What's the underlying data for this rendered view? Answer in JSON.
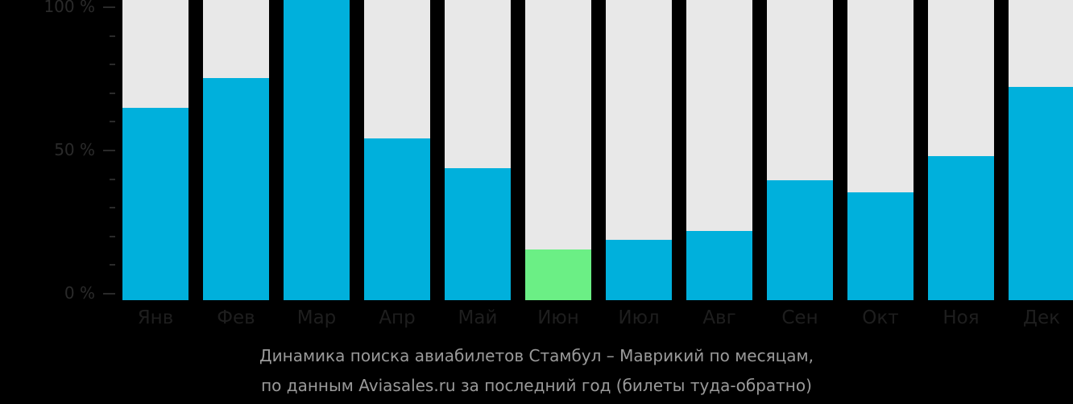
{
  "chart_data": {
    "type": "bar",
    "title": "Динамика поиска авиабилетов Стамбул – Маврикий по месяцам, по данным Aviasales.ru за последний год (билеты туда-обратно)",
    "xlabel": "",
    "ylabel": "",
    "ylim": [
      0,
      100
    ],
    "y_ticks": [
      "0 %",
      "50 %",
      "100 %"
    ],
    "grid": false,
    "legend": null,
    "categories": [
      "Янв",
      "Фев",
      "Мар",
      "Апр",
      "Май",
      "Июн",
      "Июл",
      "Авг",
      "Сен",
      "Окт",
      "Ноя",
      "Дек"
    ],
    "values": [
      64,
      74,
      100,
      54,
      44,
      17,
      20,
      23,
      40,
      36,
      48,
      71
    ],
    "highlight_index": 5,
    "colors": {
      "bar": "#00b0dc",
      "highlight": "#6bef85",
      "track": "#e8e8e8",
      "background": "#000000"
    }
  },
  "axis": {
    "y_labels": [
      {
        "label": "100 %",
        "value": 100
      },
      {
        "label": "50 %",
        "value": 50
      },
      {
        "label": "0 %",
        "value": 0
      }
    ]
  },
  "caption": {
    "line1": "Динамика поиска авиабилетов Стамбул – Маврикий по месяцам,",
    "line2": "по данным Aviasales.ru за последний год (билеты туда-обратно)"
  }
}
